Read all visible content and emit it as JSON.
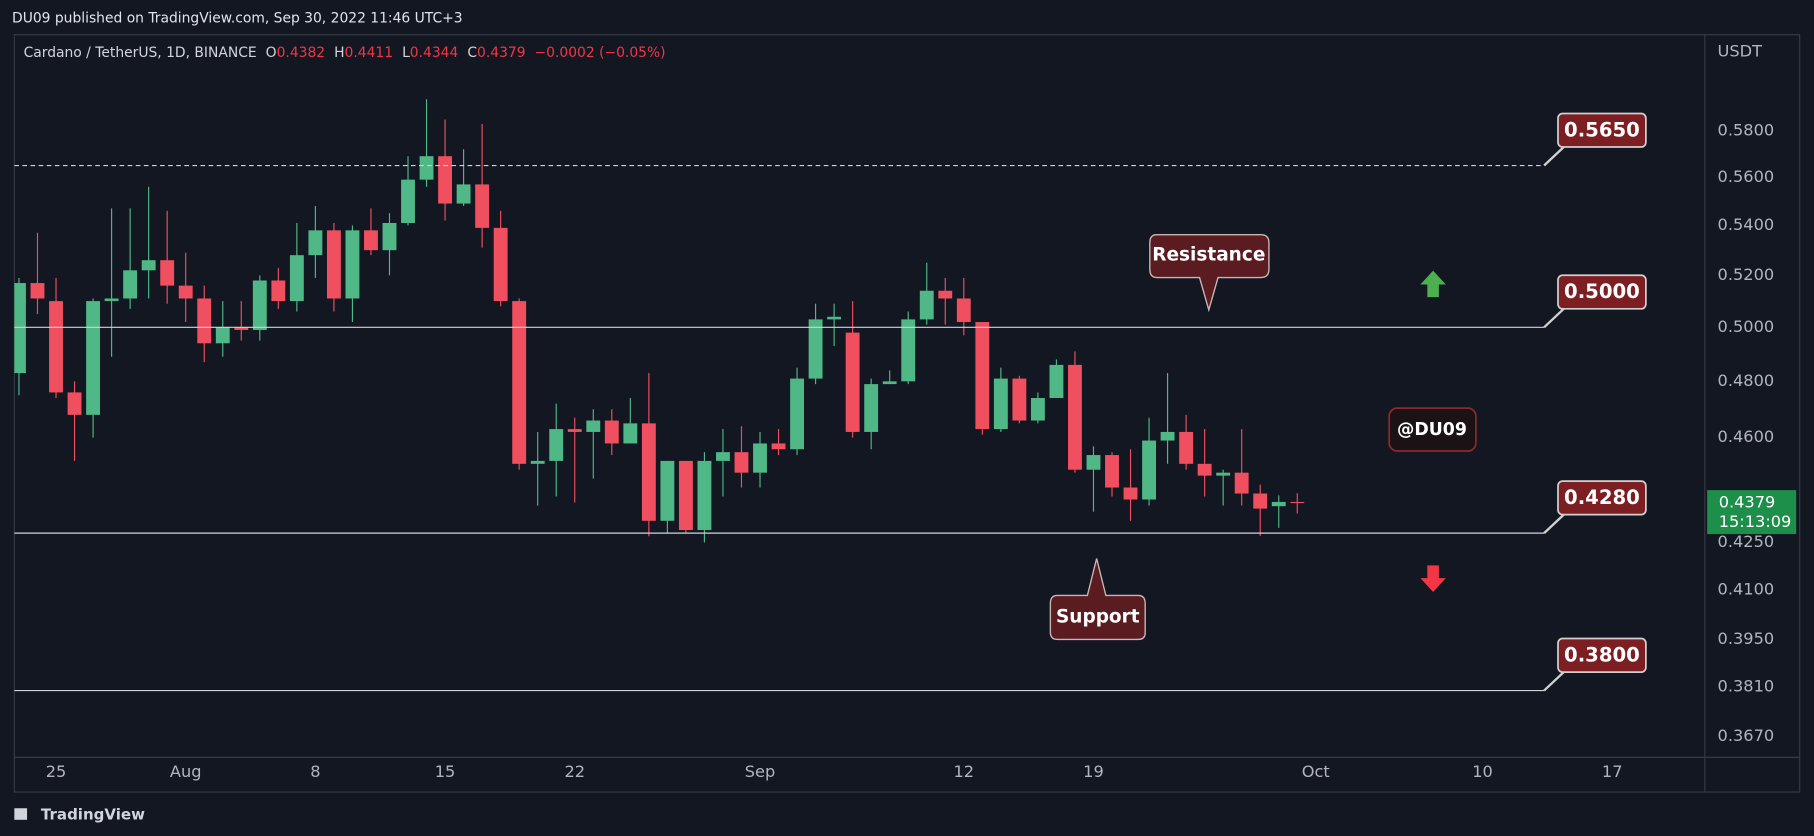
{
  "header": {
    "published": "DU09 published on TradingView.com, Sep 30, 2022 11:46 UTC+3",
    "footer": "TradingView"
  },
  "chart_data": {
    "type": "candlestick",
    "symbol": "Cardano / TetherUS, 1D, BINANCE",
    "ohlc_keys": [
      "O",
      "H",
      "L",
      "C"
    ],
    "ohlc_change": "−0.0002 (−0.05%)",
    "y_unit": "USDT",
    "countdown": "15:13:09",
    "up_color": "#4fb886",
    "down_color": "#ef4f5e",
    "log_scale": true,
    "grid": false,
    "x": [
      "2022-07-23",
      "2022-07-24",
      "2022-07-25",
      "2022-07-26",
      "2022-07-27",
      "2022-07-28",
      "2022-07-29",
      "2022-07-30",
      "2022-07-31",
      "2022-08-01",
      "2022-08-02",
      "2022-08-03",
      "2022-08-04",
      "2022-08-05",
      "2022-08-06",
      "2022-08-07",
      "2022-08-08",
      "2022-08-09",
      "2022-08-10",
      "2022-08-11",
      "2022-08-12",
      "2022-08-13",
      "2022-08-14",
      "2022-08-15",
      "2022-08-16",
      "2022-08-17",
      "2022-08-18",
      "2022-08-19",
      "2022-08-20",
      "2022-08-21",
      "2022-08-22",
      "2022-08-23",
      "2022-08-24",
      "2022-08-25",
      "2022-08-26",
      "2022-08-27",
      "2022-08-28",
      "2022-08-29",
      "2022-08-30",
      "2022-08-31",
      "2022-09-01",
      "2022-09-02",
      "2022-09-03",
      "2022-09-04",
      "2022-09-05",
      "2022-09-06",
      "2022-09-07",
      "2022-09-08",
      "2022-09-09",
      "2022-09-10",
      "2022-09-11",
      "2022-09-12",
      "2022-09-13",
      "2022-09-14",
      "2022-09-15",
      "2022-09-16",
      "2022-09-17",
      "2022-09-18",
      "2022-09-19",
      "2022-09-20",
      "2022-09-21",
      "2022-09-22",
      "2022-09-23",
      "2022-09-24",
      "2022-09-25",
      "2022-09-26",
      "2022-09-27",
      "2022-09-28",
      "2022-09-29",
      "2022-09-30"
    ],
    "open": [
      0.483,
      0.517,
      0.51,
      0.476,
      0.468,
      0.51,
      0.511,
      0.522,
      0.526,
      0.516,
      0.511,
      0.494,
      0.5,
      0.499,
      0.518,
      0.51,
      0.528,
      0.538,
      0.511,
      0.538,
      0.53,
      0.541,
      0.559,
      0.569,
      0.549,
      0.557,
      0.539,
      0.51,
      0.451,
      0.452,
      0.463,
      0.462,
      0.466,
      0.458,
      0.465,
      0.432,
      0.452,
      0.429,
      0.452,
      0.455,
      0.448,
      0.458,
      0.456,
      0.481,
      0.503,
      0.498,
      0.462,
      0.479,
      0.48,
      0.503,
      0.514,
      0.511,
      0.502,
      0.463,
      0.481,
      0.466,
      0.474,
      0.486,
      0.449,
      0.454,
      0.443,
      0.439,
      0.459,
      0.462,
      0.451,
      0.447,
      0.448,
      0.441,
      0.4368,
      0.4382
    ],
    "high": [
      0.519,
      0.537,
      0.519,
      0.48,
      0.511,
      0.547,
      0.547,
      0.556,
      0.546,
      0.529,
      0.516,
      0.51,
      0.51,
      0.52,
      0.523,
      0.541,
      0.548,
      0.541,
      0.54,
      0.547,
      0.545,
      0.569,
      0.594,
      0.585,
      0.572,
      0.583,
      0.546,
      0.511,
      0.462,
      0.472,
      0.467,
      0.47,
      0.47,
      0.474,
      0.483,
      0.452,
      0.452,
      0.455,
      0.463,
      0.464,
      0.462,
      0.463,
      0.485,
      0.509,
      0.509,
      0.51,
      0.481,
      0.484,
      0.506,
      0.525,
      0.519,
      0.519,
      0.502,
      0.485,
      0.482,
      0.476,
      0.488,
      0.491,
      0.457,
      0.455,
      0.456,
      0.467,
      0.483,
      0.468,
      0.463,
      0.449,
      0.463,
      0.444,
      0.4404,
      0.4411
    ],
    "low": [
      0.475,
      0.505,
      0.474,
      0.452,
      0.46,
      0.489,
      0.507,
      0.511,
      0.509,
      0.502,
      0.487,
      0.489,
      0.495,
      0.495,
      0.507,
      0.506,
      0.519,
      0.506,
      0.502,
      0.528,
      0.52,
      0.54,
      0.556,
      0.542,
      0.548,
      0.531,
      0.508,
      0.449,
      0.437,
      0.44,
      0.438,
      0.446,
      0.454,
      0.458,
      0.427,
      0.428,
      0.428,
      0.425,
      0.44,
      0.443,
      0.443,
      0.454,
      0.454,
      0.479,
      0.493,
      0.46,
      0.456,
      0.479,
      0.479,
      0.501,
      0.501,
      0.497,
      0.461,
      0.462,
      0.465,
      0.465,
      0.474,
      0.448,
      0.435,
      0.44,
      0.432,
      0.437,
      0.451,
      0.449,
      0.44,
      0.437,
      0.437,
      0.4271,
      0.4297,
      0.4344
    ],
    "close": [
      0.517,
      0.511,
      0.476,
      0.468,
      0.51,
      0.511,
      0.522,
      0.526,
      0.516,
      0.511,
      0.494,
      0.5,
      0.499,
      0.518,
      0.51,
      0.528,
      0.538,
      0.511,
      0.538,
      0.53,
      0.541,
      0.559,
      0.569,
      0.549,
      0.557,
      0.539,
      0.51,
      0.451,
      0.452,
      0.463,
      0.462,
      0.466,
      0.458,
      0.465,
      0.432,
      0.452,
      0.429,
      0.452,
      0.455,
      0.448,
      0.458,
      0.456,
      0.481,
      0.503,
      0.504,
      0.462,
      0.479,
      0.48,
      0.503,
      0.514,
      0.511,
      0.502,
      0.463,
      0.481,
      0.466,
      0.474,
      0.486,
      0.449,
      0.454,
      0.443,
      0.439,
      0.459,
      0.462,
      0.451,
      0.447,
      0.448,
      0.441,
      0.436,
      0.4382,
      0.4379
    ],
    "xlim": [
      "2022-07-23",
      "2022-10-22"
    ],
    "xticks": [
      {
        "value": "2022-07-25",
        "label": "25"
      },
      {
        "value": "2022-08-01",
        "label": "Aug"
      },
      {
        "value": "2022-08-08",
        "label": "8"
      },
      {
        "value": "2022-08-15",
        "label": "15"
      },
      {
        "value": "2022-08-22",
        "label": "22"
      },
      {
        "value": "2022-09-01",
        "label": "Sep"
      },
      {
        "value": "2022-09-12",
        "label": "12"
      },
      {
        "value": "2022-09-19",
        "label": "19"
      },
      {
        "value": "2022-10-01",
        "label": "Oct"
      },
      {
        "value": "2022-10-10",
        "label": "10"
      },
      {
        "value": "2022-10-17",
        "label": "17"
      }
    ],
    "ylim": [
      0.3613,
      0.6237
    ],
    "yticks": [
      {
        "value": 0.58,
        "label": "0.5800"
      },
      {
        "value": 0.56,
        "label": "0.5600"
      },
      {
        "value": 0.54,
        "label": "0.5400"
      },
      {
        "value": 0.52,
        "label": "0.5200"
      },
      {
        "value": 0.5,
        "label": "0.5000"
      },
      {
        "value": 0.48,
        "label": "0.4800"
      },
      {
        "value": 0.46,
        "label": "0.4600"
      },
      {
        "value": 0.425,
        "label": "0.4250"
      },
      {
        "value": 0.41,
        "label": "0.4100"
      },
      {
        "value": 0.395,
        "label": "0.3950"
      },
      {
        "value": 0.381,
        "label": "0.3810"
      },
      {
        "value": 0.367,
        "label": "0.3670"
      }
    ],
    "levels": [
      {
        "value": 0.565,
        "label": "0.5650",
        "style": "dashed"
      },
      {
        "value": 0.5,
        "label": "0.5000",
        "style": "solid"
      },
      {
        "value": 0.428,
        "label": "0.4280",
        "style": "solid"
      },
      {
        "value": 0.38,
        "label": "0.3800",
        "style": "solid"
      }
    ],
    "annotations": {
      "resistance": "Resistance",
      "support": "Support",
      "watermark": "@DU09"
    }
  }
}
